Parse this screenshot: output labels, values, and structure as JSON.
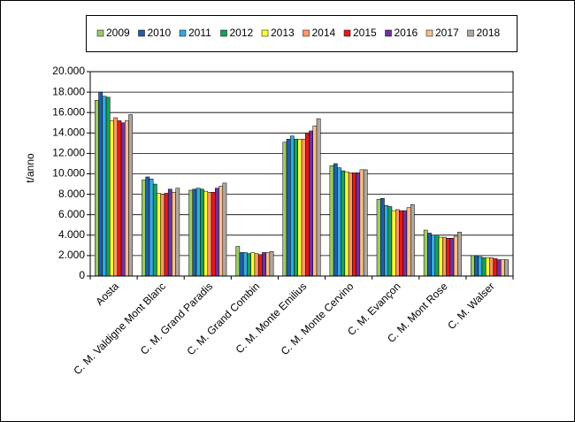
{
  "chart_data": {
    "type": "bar",
    "y_label": "t/anno",
    "categories": [
      "Aosta",
      "C. M. Valdigne Mont Blanc",
      "C. M. Grand Paradis",
      "C. M. Grand Combin",
      "C. M. Monte Emilius",
      "C. M. Monte Cervino",
      "C. M. Evançon",
      "C. M. Mont Rose",
      "C. M. Walser"
    ],
    "series": [
      {
        "name": "2009",
        "color": "#99cc66",
        "values": [
          17200,
          9400,
          8400,
          2900,
          13100,
          10800,
          7500,
          4500,
          2000
        ]
      },
      {
        "name": "2010",
        "color": "#1f5fa8",
        "values": [
          18000,
          9700,
          8500,
          2300,
          13400,
          11000,
          7600,
          4200,
          2000
        ]
      },
      {
        "name": "2011",
        "color": "#33aadd",
        "values": [
          17600,
          9500,
          8600,
          2300,
          13700,
          10600,
          6900,
          4000,
          1900
        ]
      },
      {
        "name": "2012",
        "color": "#1a9f5a",
        "values": [
          17500,
          9000,
          8500,
          2200,
          13400,
          10300,
          6800,
          4000,
          1800
        ]
      },
      {
        "name": "2013",
        "color": "#ffff33",
        "values": [
          15200,
          8100,
          8300,
          2300,
          13400,
          10200,
          6400,
          3800,
          1800
        ]
      },
      {
        "name": "2014",
        "color": "#ff9966",
        "values": [
          15500,
          8000,
          8200,
          2200,
          13400,
          10100,
          6500,
          3800,
          1800
        ]
      },
      {
        "name": "2015",
        "color": "#e31a1c",
        "values": [
          15200,
          8100,
          8200,
          2100,
          14000,
          10100,
          6400,
          3700,
          1700
        ]
      },
      {
        "name": "2016",
        "color": "#7030a0",
        "values": [
          15000,
          8500,
          8600,
          2300,
          14200,
          10100,
          6400,
          3700,
          1600
        ]
      },
      {
        "name": "2017",
        "color": "#f5c08a",
        "values": [
          15200,
          8200,
          8800,
          2300,
          14700,
          10400,
          6700,
          3900,
          1600
        ]
      },
      {
        "name": "2018",
        "color": "#b0a8a0",
        "values": [
          15800,
          8600,
          9100,
          2400,
          15400,
          10400,
          7000,
          4300,
          1600
        ]
      }
    ],
    "ylim": [
      0,
      20000
    ],
    "yticks": [
      0,
      {
        "value": 2000,
        "label": "2.000"
      },
      {
        "value": 4000,
        "label": "4.000"
      },
      {
        "value": 6000,
        "label": "6.000"
      },
      {
        "value": 8000,
        "label": "8.000"
      },
      {
        "value": 10000,
        "label": "10.000"
      },
      {
        "value": 12000,
        "label": "12.000"
      },
      {
        "value": 14000,
        "label": "14.000"
      },
      {
        "value": 16000,
        "label": "16.000"
      },
      {
        "value": 18000,
        "label": "18.000"
      },
      {
        "value": 20000,
        "label": "20.000"
      }
    ],
    "grid": true
  }
}
